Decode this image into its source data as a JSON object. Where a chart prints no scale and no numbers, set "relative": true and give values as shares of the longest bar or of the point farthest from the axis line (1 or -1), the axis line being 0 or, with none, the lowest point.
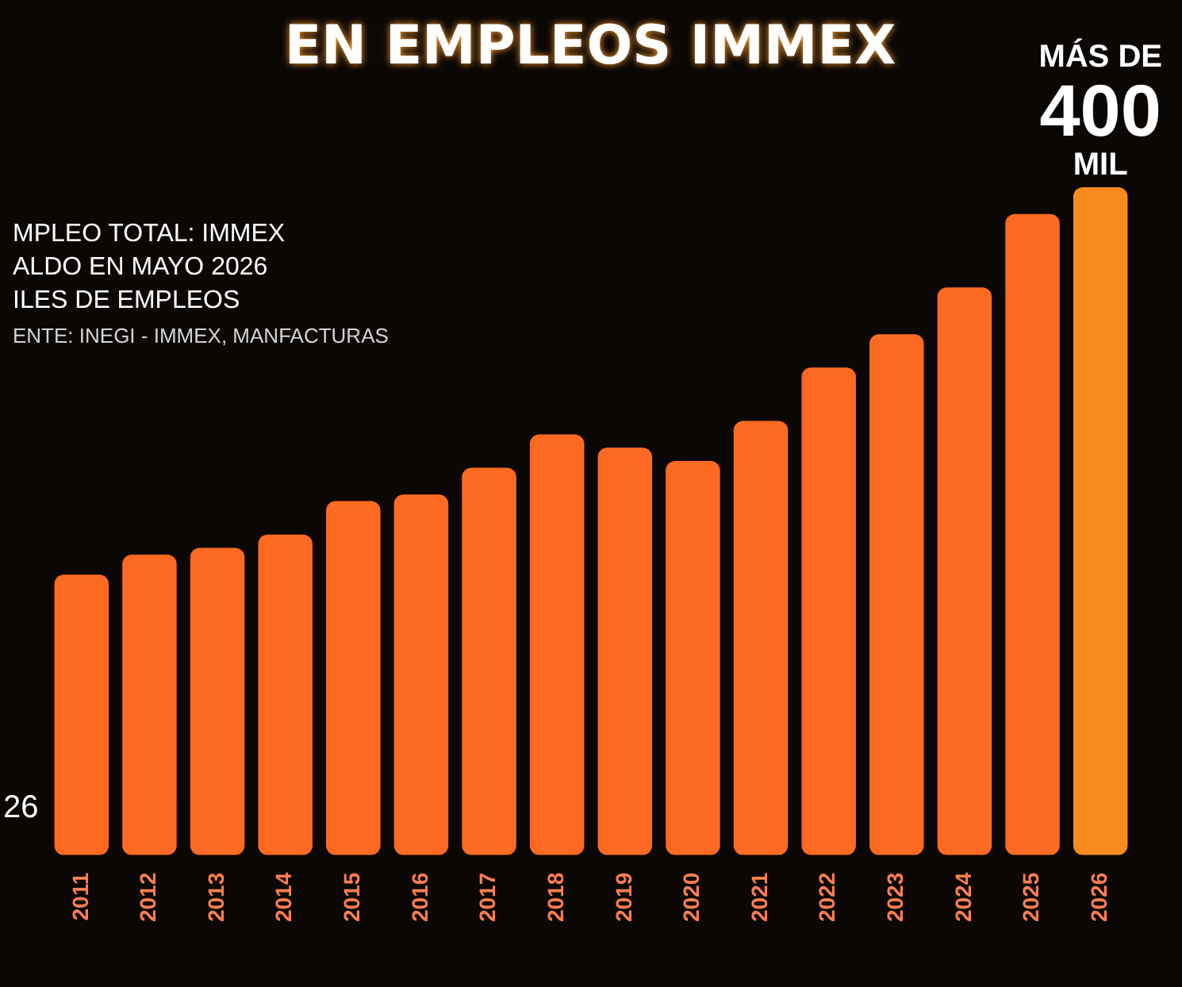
{
  "chart_data": {
    "type": "bar",
    "title": "EN EMPLEOS IMMEX",
    "subtitle": "MPLEO TOTAL: IMMEX\nALDO EN MAYO 2026\nILES DE EMPLEOS",
    "categories": [
      "2011",
      "2012",
      "2013",
      "2014",
      "2015",
      "2016",
      "2017",
      "2018",
      "2019",
      "2020",
      "2021",
      "2022",
      "2023",
      "2024",
      "2025",
      "2026"
    ],
    "values": [
      0.42,
      0.45,
      0.46,
      0.48,
      0.53,
      0.54,
      0.58,
      0.63,
      0.61,
      0.59,
      0.65,
      0.73,
      0.78,
      0.85,
      0.96,
      1
    ],
    "colors": [
      "#ff6a22",
      "#ff6a22",
      "#ff6a22",
      "#ff6a22",
      "#ff6a22",
      "#ff6a22",
      "#ff6a22",
      "#ff6a22",
      "#ff6a22",
      "#ff6a22",
      "#ff6a22",
      "#ff6a22",
      "#ff6a22",
      "#ff6a22",
      "#ff6a22",
      "#f98b1e"
    ],
    "relative": true,
    "annotations": [
      "ENTE: INEGI - IMMEX, MANFACTURAS",
      "26",
      {
        "text": "MÁS DE\n400\nMIL",
        "x": "2026",
        "y": 1
      }
    ]
  }
}
